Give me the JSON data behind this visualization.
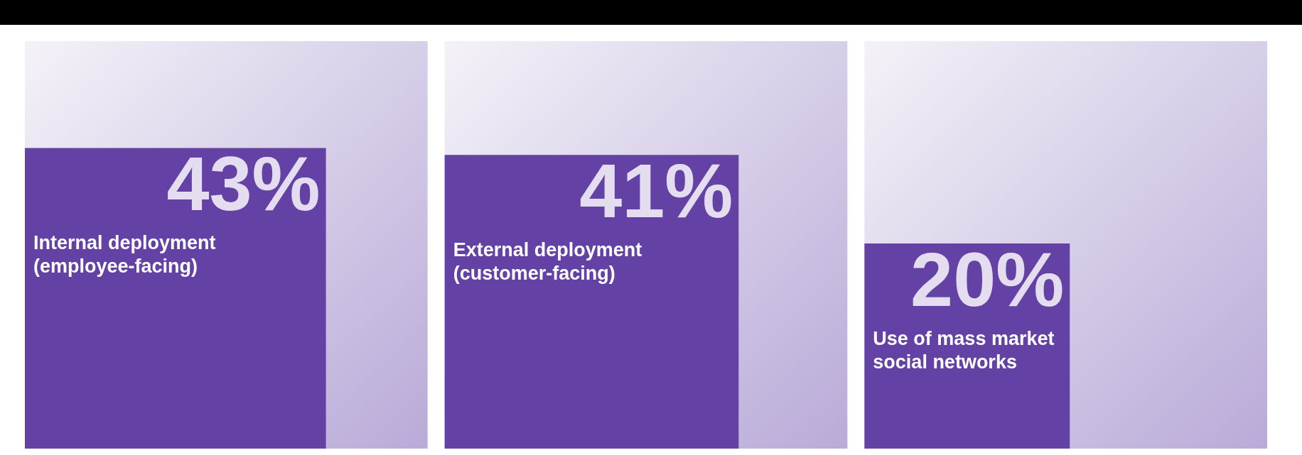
{
  "chart_data": {
    "type": "other",
    "categories": [
      "Internal deployment (employee-facing)",
      "External deployment (customer-facing)",
      "Use of mass market social networks"
    ],
    "values": [
      43,
      41,
      20
    ],
    "value_labels": [
      "43%",
      "41%",
      "20%"
    ],
    "color": "#6441a5"
  }
}
